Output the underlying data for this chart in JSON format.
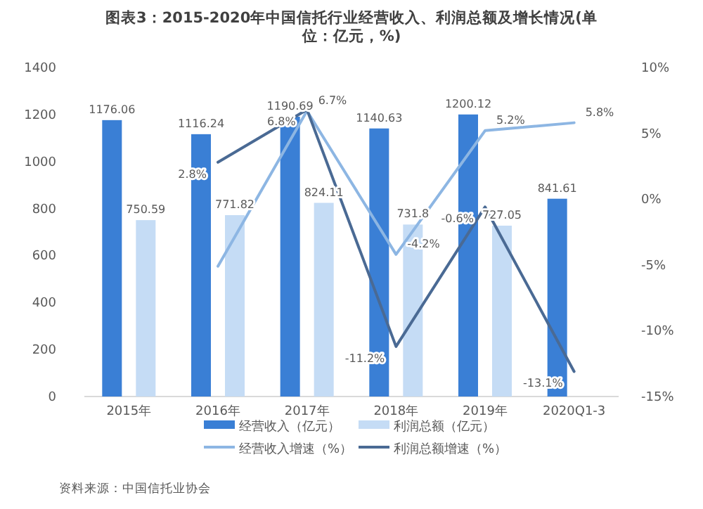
{
  "chart_data": {
    "type": "bar",
    "title": "图表3：2015-2020年中国信托行业经营收入、利润总额及增长情况(单位：亿元，%)",
    "categories": [
      "2015年",
      "2016年",
      "2017年",
      "2018年",
      "2019年",
      "2020Q1-3"
    ],
    "series": [
      {
        "name": "经营收入（亿元）",
        "color": "#3a7fd5",
        "values": [
          1176.06,
          1116.24,
          1190.69,
          1140.63,
          1200.12,
          841.61
        ],
        "value_labels": [
          "1176.06",
          "1116.24",
          "1190.69",
          "1140.63",
          "1200.12",
          "841.61"
        ]
      },
      {
        "name": "利润总额（亿元）",
        "color": "#c5dcf5",
        "values": [
          750.59,
          771.82,
          824.11,
          731.8,
          727.05,
          null
        ],
        "value_labels": [
          "750.59",
          "771.82",
          "824.11",
          "731.8",
          "727.05",
          null
        ]
      },
      {
        "name": "经营收入增速（%）",
        "type": "line",
        "axis": "y2",
        "color": "#8db6e3",
        "values": [
          null,
          -5.1,
          6.7,
          -4.2,
          5.2,
          5.8
        ],
        "value_labels": [
          null,
          null,
          "6.7%",
          "-4.2%",
          "5.2%",
          "5.8%"
        ]
      },
      {
        "name": "利润总额增速（%）",
        "type": "line",
        "axis": "y2",
        "color": "#4a6a94",
        "values": [
          null,
          2.8,
          6.8,
          -11.2,
          -0.6,
          -13.1
        ],
        "value_labels": [
          null,
          "2.8%",
          "6.8%",
          "-11.2%",
          "-0.6%",
          "-13.1%"
        ]
      }
    ],
    "ylim": [
      0,
      1400
    ],
    "yticks": [
      0,
      200,
      400,
      600,
      800,
      1000,
      1200,
      1400
    ],
    "y2lim": [
      -15,
      10
    ],
    "y2ticks": [
      {
        "value": -15,
        "label": "-15%"
      },
      {
        "value": -10,
        "label": "-10%"
      },
      {
        "value": -5,
        "label": "-5%"
      },
      {
        "value": 0,
        "label": "0%"
      },
      {
        "value": 5,
        "label": "5%"
      },
      {
        "value": 10,
        "label": "10%"
      }
    ],
    "legend": "bottom",
    "annotations": [
      "资料来源：中国信托业协会"
    ]
  }
}
